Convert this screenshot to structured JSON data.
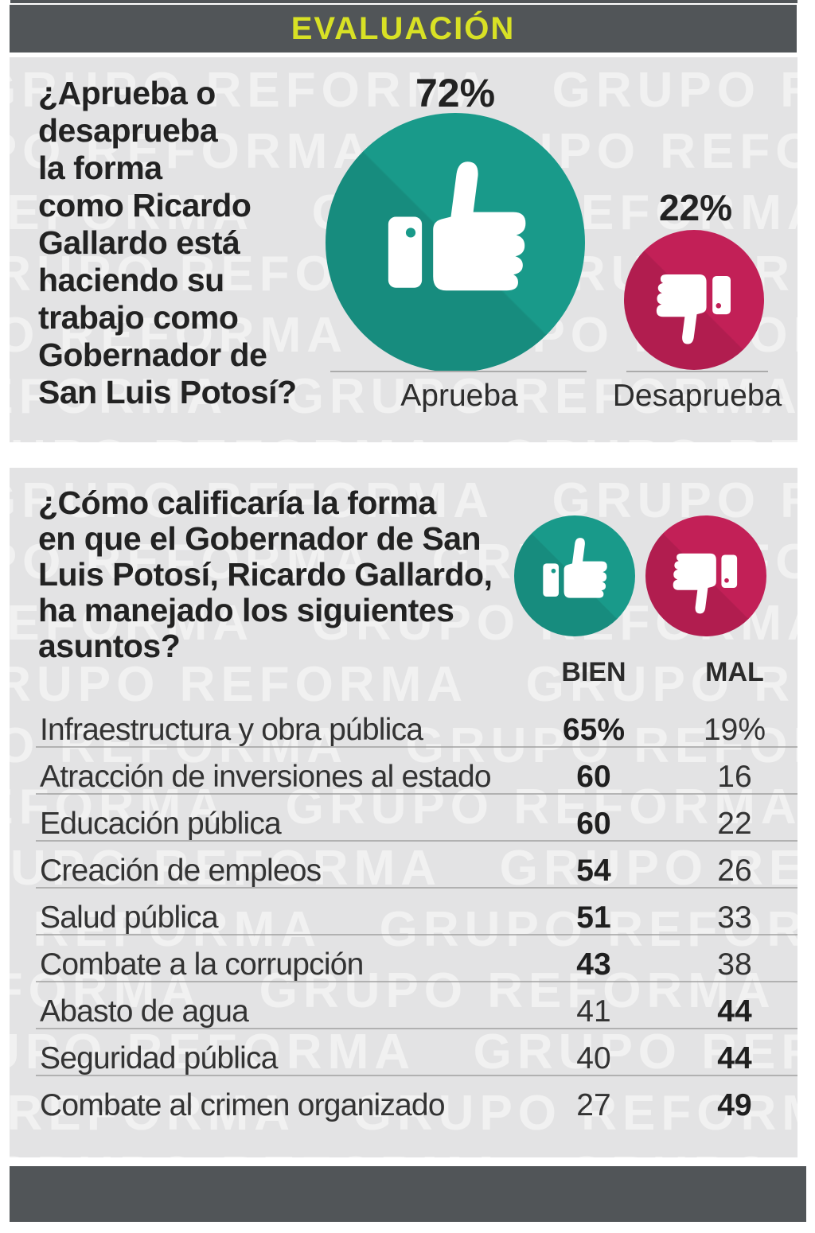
{
  "header": {
    "title": "EVALUACIÓN"
  },
  "watermark": {
    "text": "GRUPO REFORMA"
  },
  "colors": {
    "approve_teal": "#199a8a",
    "disapprove_crimson": "#c22057",
    "header_bar": "#515558",
    "header_title_yellow": "#d8e125",
    "panel_bg": "#e3e3e4",
    "watermark_white": "#f4f4f4",
    "separator_gray": "#9b9b9b",
    "text_ink": "#222222"
  },
  "chart_data": [
    {
      "type": "pie",
      "variant": "proportional-circles-with-thumb-icons",
      "question": "¿Aprueba o desaprueba la forma como Ricardo Gallardo está haciendo su trabajo como Gobernador de San Luis Potosí?",
      "question_display": "¿Aprueba o\ndesaprueba\nla forma\ncomo Ricardo\nGallardo está\nhaciendo su\ntrabajo como\nGobernador de\nSan Luis Potosí?",
      "categories": [
        "Aprueba",
        "Desaprueba"
      ],
      "values": [
        72,
        22
      ],
      "value_labels": [
        "72%",
        "22%"
      ],
      "unit": "%",
      "colors": [
        "#199a8a",
        "#c22057"
      ],
      "legend_position": "below-circles"
    },
    {
      "type": "table",
      "question": "¿Cómo calificaría la forma en que el Gobernador de San Luis Potosí, Ricardo Gallardo, ha manejado los siguientes asuntos?",
      "question_display": "¿Cómo calificaría la forma\nen que el Gobernador de San\nLuis Potosí, Ricardo Gallardo,\nha manejado los siguientes\nasuntos?",
      "columns": [
        "BIEN",
        "MAL"
      ],
      "unit": "%",
      "rows": [
        {
          "label": "Infraestructura y obra pública",
          "bien": "65%",
          "mal": "19%",
          "bien_value": 65,
          "mal_value": 19
        },
        {
          "label": "Atracción de inversiones al estado",
          "bien": "60",
          "mal": "16",
          "bien_value": 60,
          "mal_value": 16
        },
        {
          "label": "Educación pública",
          "bien": "60",
          "mal": "22",
          "bien_value": 60,
          "mal_value": 22
        },
        {
          "label": "Creación de empleos",
          "bien": "54",
          "mal": "26",
          "bien_value": 54,
          "mal_value": 26
        },
        {
          "label": "Salud pública",
          "bien": "51",
          "mal": "33",
          "bien_value": 51,
          "mal_value": 33
        },
        {
          "label": "Combate a la corrupción",
          "bien": "43",
          "mal": "38",
          "bien_value": 43,
          "mal_value": 38
        },
        {
          "label": "Abasto de agua",
          "bien": "41",
          "mal": "44",
          "bien_value": 41,
          "mal_value": 44
        },
        {
          "label": "Seguridad pública",
          "bien": "40",
          "mal": "44",
          "bien_value": 40,
          "mal_value": 44
        },
        {
          "label": "Combate al crimen organizado",
          "bien": "27",
          "mal": "49",
          "bien_value": 27,
          "mal_value": 49
        }
      ]
    }
  ]
}
